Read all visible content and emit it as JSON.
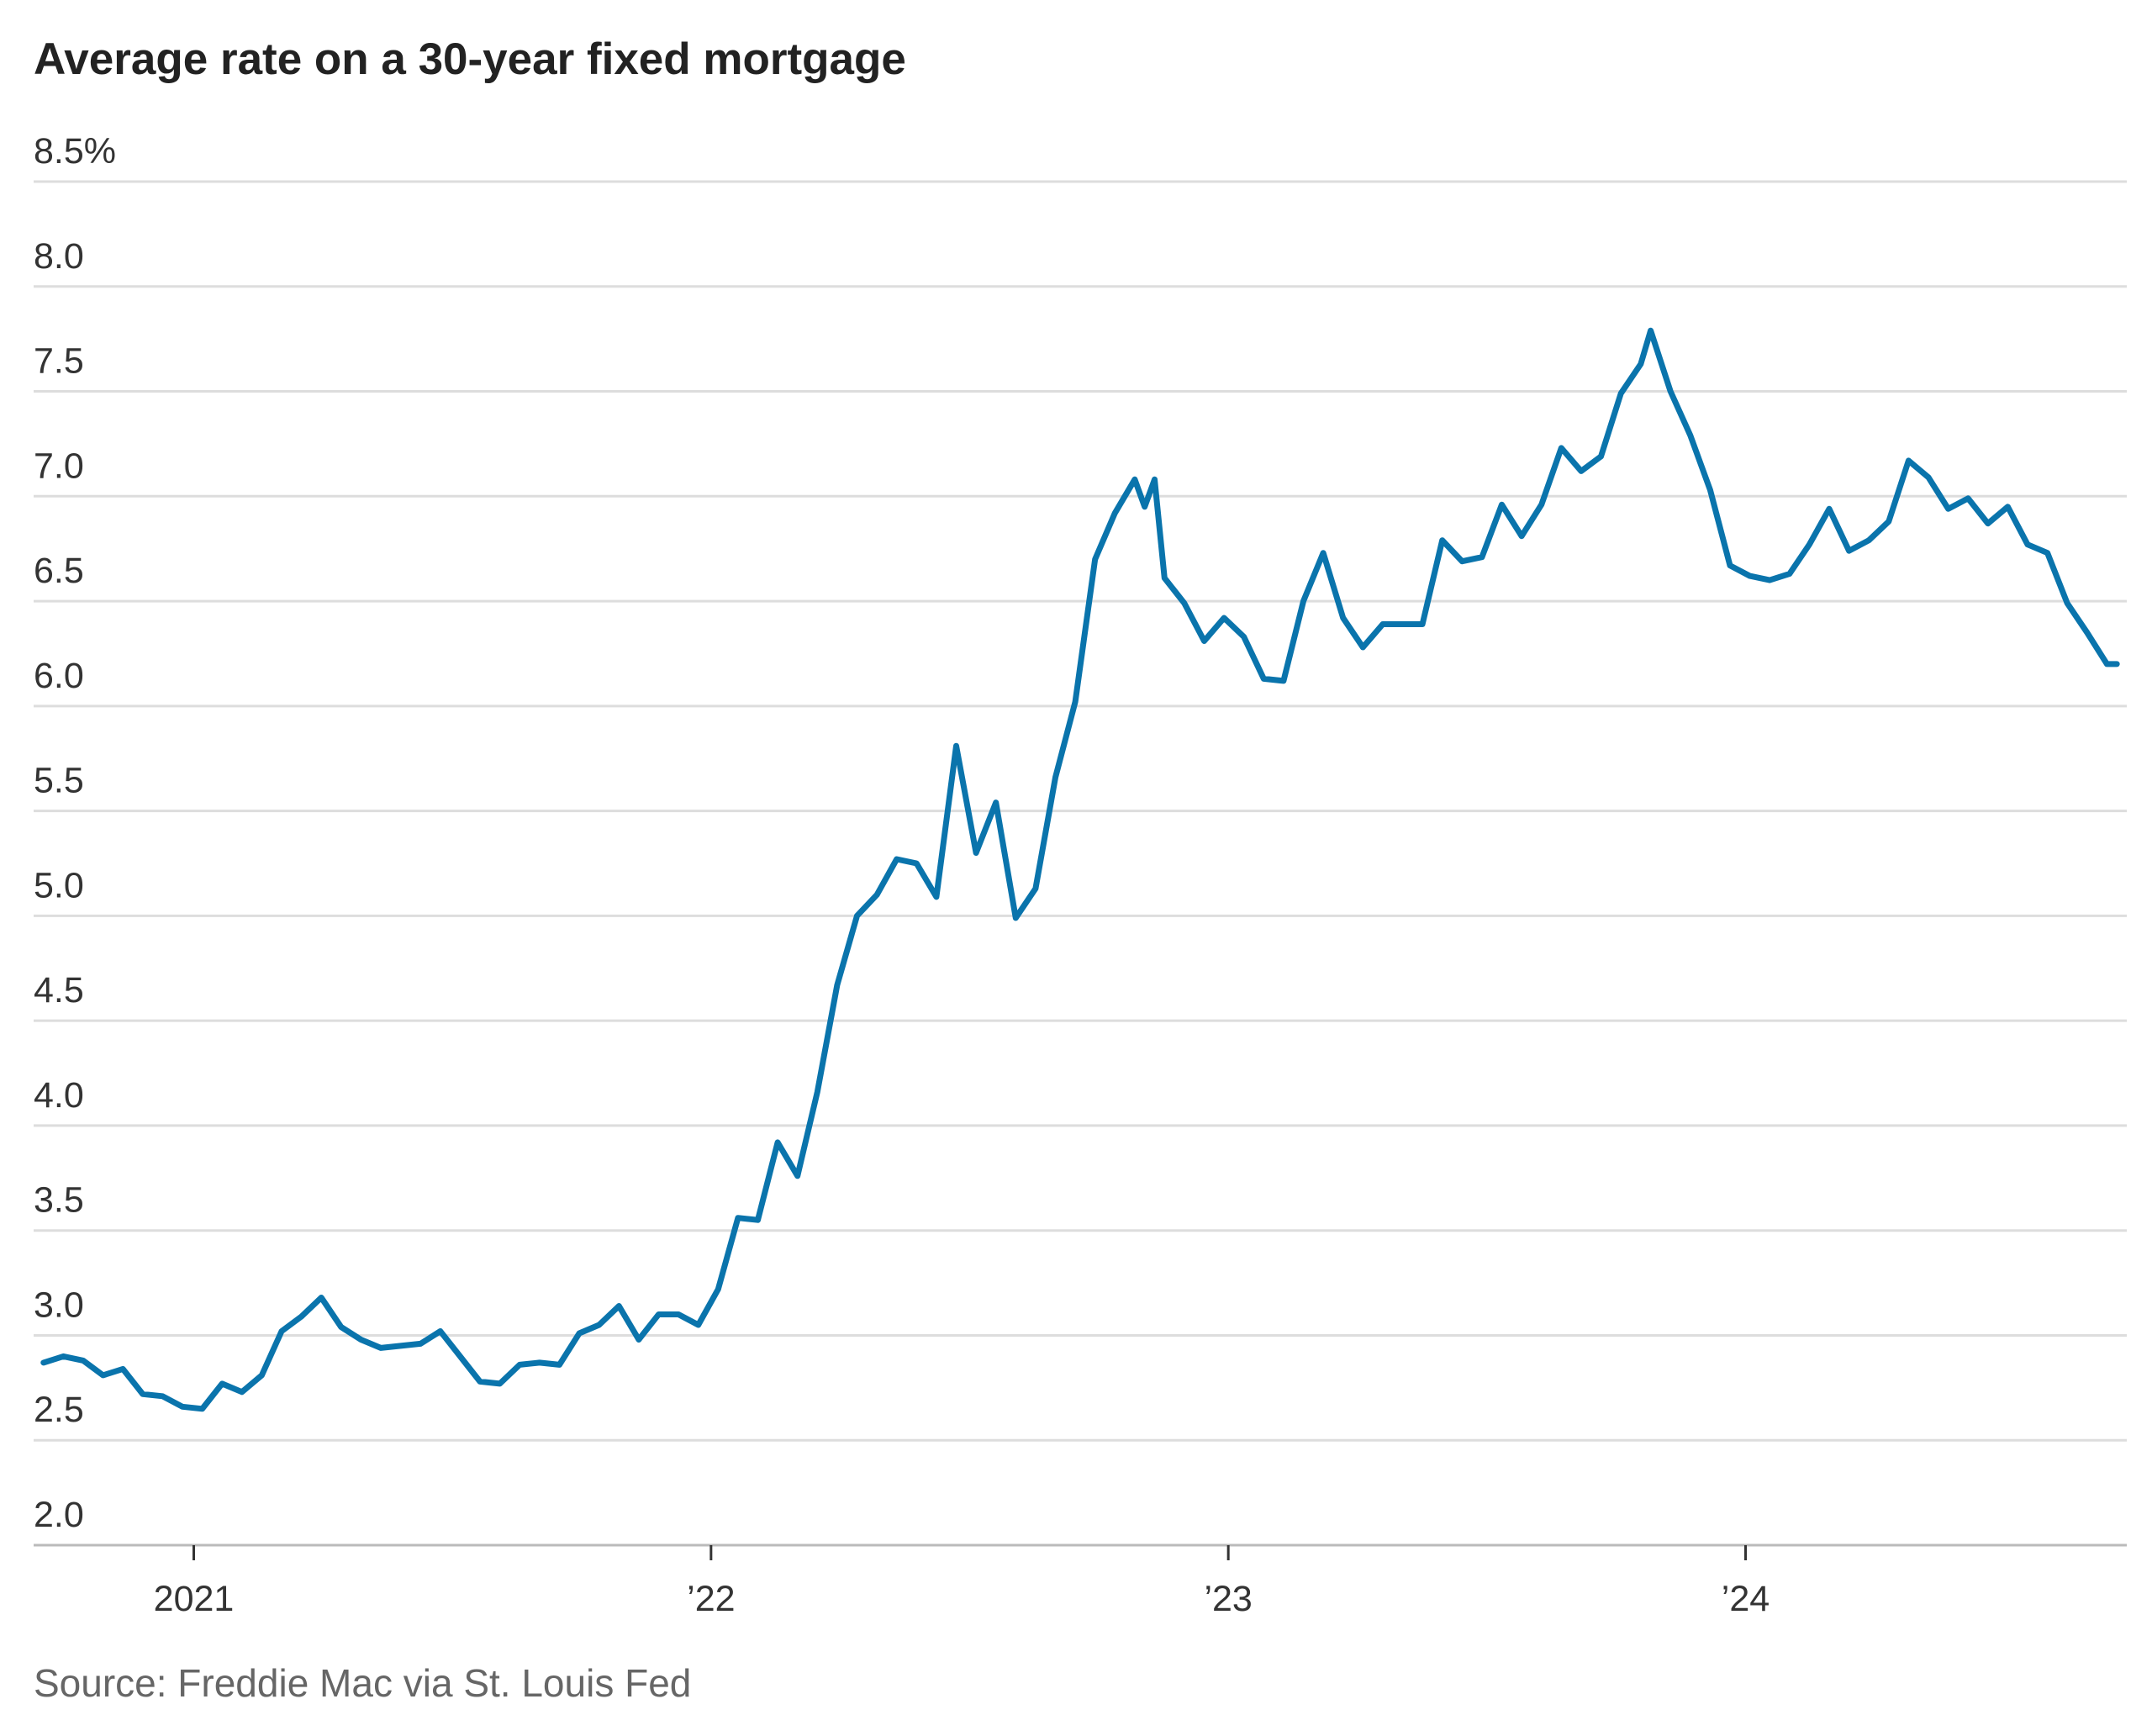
{
  "chart_data": {
    "type": "line",
    "title": "Average rate on a 30-year fixed mortgage",
    "source": "Source: Freddie Mac via St. Louis Fed",
    "xlabel": "",
    "ylabel": "",
    "ylim": [
      2.0,
      8.5
    ],
    "xlim": [
      "2020-09-10",
      "2024-09-26"
    ],
    "y_ticks": [
      2.0,
      2.5,
      3.0,
      3.5,
      4.0,
      4.5,
      5.0,
      5.5,
      6.0,
      6.5,
      7.0,
      7.5,
      8.0,
      8.5
    ],
    "y_tick_labels": [
      "2.0",
      "2.5",
      "3.0",
      "3.5",
      "4.0",
      "4.5",
      "5.0",
      "5.5",
      "6.0",
      "6.5",
      "7.0",
      "7.5",
      "8.0",
      "8.5%"
    ],
    "x_ticks": [
      {
        "date": "2021-01-01",
        "label": "2021"
      },
      {
        "date": "2022-01-01",
        "label": "’22"
      },
      {
        "date": "2023-01-01",
        "label": "’23"
      },
      {
        "date": "2024-01-01",
        "label": "’24"
      }
    ],
    "grid": "horizontal",
    "colors": {
      "line": "#0a74ac",
      "grid": "#dddddd",
      "axis": "#bbbbbb",
      "title": "#222222",
      "source": "#666666"
    },
    "series": [
      {
        "points": [
          [
            "2020-09-17",
            2.87
          ],
          [
            "2020-10-01",
            2.9
          ],
          [
            "2020-10-15",
            2.88
          ],
          [
            "2020-10-29",
            2.81
          ],
          [
            "2020-11-12",
            2.84
          ],
          [
            "2020-11-26",
            2.72
          ],
          [
            "2020-12-10",
            2.71
          ],
          [
            "2020-12-24",
            2.66
          ],
          [
            "2021-01-07",
            2.65
          ],
          [
            "2021-01-21",
            2.77
          ],
          [
            "2021-02-04",
            2.73
          ],
          [
            "2021-02-18",
            2.81
          ],
          [
            "2021-03-04",
            3.02
          ],
          [
            "2021-03-18",
            3.09
          ],
          [
            "2021-04-01",
            3.18
          ],
          [
            "2021-04-15",
            3.04
          ],
          [
            "2021-04-29",
            2.98
          ],
          [
            "2021-05-13",
            2.94
          ],
          [
            "2021-05-27",
            2.95
          ],
          [
            "2021-06-10",
            2.96
          ],
          [
            "2021-06-24",
            3.02
          ],
          [
            "2021-07-08",
            2.9
          ],
          [
            "2021-07-22",
            2.78
          ],
          [
            "2021-08-05",
            2.77
          ],
          [
            "2021-08-19",
            2.86
          ],
          [
            "2021-09-02",
            2.87
          ],
          [
            "2021-09-16",
            2.86
          ],
          [
            "2021-09-30",
            3.01
          ],
          [
            "2021-10-14",
            3.05
          ],
          [
            "2021-10-28",
            3.14
          ],
          [
            "2021-11-11",
            2.98
          ],
          [
            "2021-11-25",
            3.1
          ],
          [
            "2021-12-09",
            3.1
          ],
          [
            "2021-12-23",
            3.05
          ],
          [
            "2022-01-06",
            3.22
          ],
          [
            "2022-01-20",
            3.56
          ],
          [
            "2022-02-03",
            3.55
          ],
          [
            "2022-02-17",
            3.92
          ],
          [
            "2022-03-03",
            3.76
          ],
          [
            "2022-03-17",
            4.16
          ],
          [
            "2022-03-31",
            4.67
          ],
          [
            "2022-04-14",
            5.0
          ],
          [
            "2022-04-28",
            5.1
          ],
          [
            "2022-05-12",
            5.27
          ],
          [
            "2022-05-26",
            5.25
          ],
          [
            "2022-06-09",
            5.09
          ],
          [
            "2022-06-23",
            5.81
          ],
          [
            "2022-07-07",
            5.3
          ],
          [
            "2022-07-21",
            5.54
          ],
          [
            "2022-08-04",
            4.99
          ],
          [
            "2022-08-18",
            5.13
          ],
          [
            "2022-09-01",
            5.66
          ],
          [
            "2022-09-15",
            6.02
          ],
          [
            "2022-09-29",
            6.7
          ],
          [
            "2022-10-13",
            6.92
          ],
          [
            "2022-10-27",
            7.08
          ],
          [
            "2022-11-03",
            6.95
          ],
          [
            "2022-11-10",
            7.08
          ],
          [
            "2022-11-17",
            6.61
          ],
          [
            "2022-12-01",
            6.49
          ],
          [
            "2022-12-15",
            6.31
          ],
          [
            "2022-12-29",
            6.42
          ],
          [
            "2023-01-12",
            6.33
          ],
          [
            "2023-01-26",
            6.13
          ],
          [
            "2023-02-09",
            6.12
          ],
          [
            "2023-02-23",
            6.5
          ],
          [
            "2023-03-09",
            6.73
          ],
          [
            "2023-03-23",
            6.42
          ],
          [
            "2023-04-06",
            6.28
          ],
          [
            "2023-04-20",
            6.39
          ],
          [
            "2023-05-04",
            6.39
          ],
          [
            "2023-05-18",
            6.39
          ],
          [
            "2023-06-01",
            6.79
          ],
          [
            "2023-06-15",
            6.69
          ],
          [
            "2023-06-29",
            6.71
          ],
          [
            "2023-07-13",
            6.96
          ],
          [
            "2023-07-27",
            6.81
          ],
          [
            "2023-08-10",
            6.96
          ],
          [
            "2023-08-24",
            7.23
          ],
          [
            "2023-09-07",
            7.12
          ],
          [
            "2023-09-21",
            7.19
          ],
          [
            "2023-10-05",
            7.49
          ],
          [
            "2023-10-19",
            7.63
          ],
          [
            "2023-10-26",
            7.79
          ],
          [
            "2023-11-09",
            7.5
          ],
          [
            "2023-11-23",
            7.29
          ],
          [
            "2023-12-07",
            7.03
          ],
          [
            "2023-12-21",
            6.67
          ],
          [
            "2024-01-04",
            6.62
          ],
          [
            "2024-01-18",
            6.6
          ],
          [
            "2024-02-01",
            6.63
          ],
          [
            "2024-02-15",
            6.77
          ],
          [
            "2024-02-29",
            6.94
          ],
          [
            "2024-03-14",
            6.74
          ],
          [
            "2024-03-28",
            6.79
          ],
          [
            "2024-04-11",
            6.88
          ],
          [
            "2024-04-25",
            7.17
          ],
          [
            "2024-05-09",
            7.09
          ],
          [
            "2024-05-23",
            6.94
          ],
          [
            "2024-06-06",
            6.99
          ],
          [
            "2024-06-20",
            6.87
          ],
          [
            "2024-07-04",
            6.95
          ],
          [
            "2024-07-18",
            6.77
          ],
          [
            "2024-08-01",
            6.73
          ],
          [
            "2024-08-15",
            6.49
          ],
          [
            "2024-08-29",
            6.35
          ],
          [
            "2024-09-12",
            6.2
          ],
          [
            "2024-09-19",
            6.2
          ]
        ]
      }
    ]
  }
}
